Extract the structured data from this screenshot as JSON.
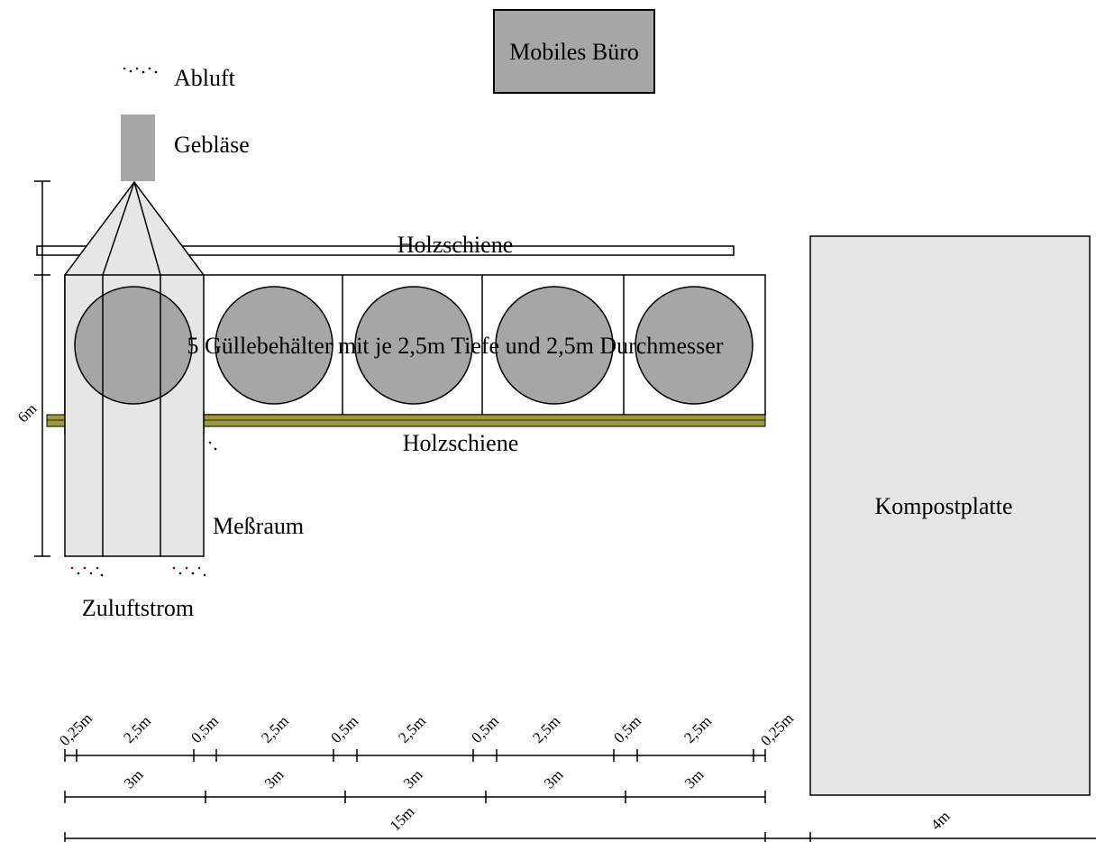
{
  "labels": {
    "office": "Mobiles Büro",
    "exhaust": "Abluft",
    "blower": "Gebläse",
    "rail_top": "Holzschiene",
    "rail_bottom": "Holzschiene",
    "tanks": "5 Güllebehälter mit je 2,5m Tiefe und 2,5m Durchmesser",
    "measuring_room": "Meßraum",
    "supply_air": "Zuluftstrom",
    "compost": "Kompostplatte"
  },
  "dimensions": {
    "height": "6m",
    "row1": [
      "0,25m",
      "2,5m",
      "0,5m",
      "2,5m",
      "0,5m",
      "2,5m",
      "0,5m",
      "2,5m",
      "0,5m",
      "2,5m",
      "0,25m"
    ],
    "row2": [
      "3m",
      "3m",
      "3m",
      "3m",
      "3m"
    ],
    "total": "15m",
    "compost_width": "4m"
  },
  "colors": {
    "tank_fill": "#a6a6a6",
    "room_fill": "#e6e6e6",
    "rail_fill": "#9c9a3c",
    "marker": "#8b0000"
  }
}
